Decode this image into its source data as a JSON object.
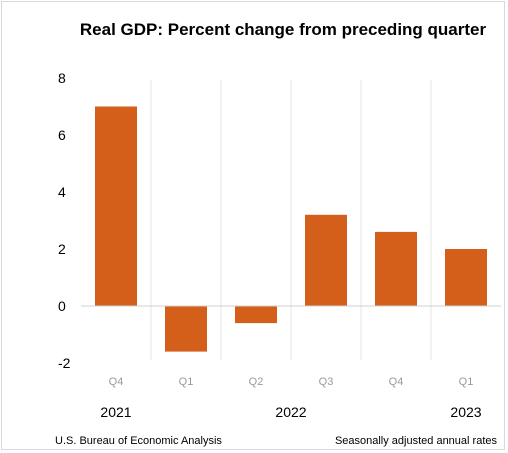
{
  "chart_data": {
    "type": "bar",
    "title": "Real GDP:  Percent change from preceding quarter",
    "categories": [
      "Q4",
      "Q1",
      "Q2",
      "Q3",
      "Q4",
      "Q1"
    ],
    "values": [
      7.0,
      -1.6,
      -0.6,
      3.2,
      2.6,
      2.0
    ],
    "years": [
      {
        "label": "2021",
        "category_index": 0
      },
      {
        "label": "2022",
        "category_index": 2.5
      },
      {
        "label": "2023",
        "category_index": 5
      }
    ],
    "yticks": [
      -2,
      0,
      2,
      4,
      6,
      8
    ],
    "ylim": [
      -2,
      8
    ],
    "xlabel": "",
    "ylabel": "",
    "bar_color": "#d35f1a",
    "grid": "vertical category separators",
    "source": "U.S. Bureau of Economic Analysis",
    "note": "Seasonally adjusted annual rates"
  }
}
